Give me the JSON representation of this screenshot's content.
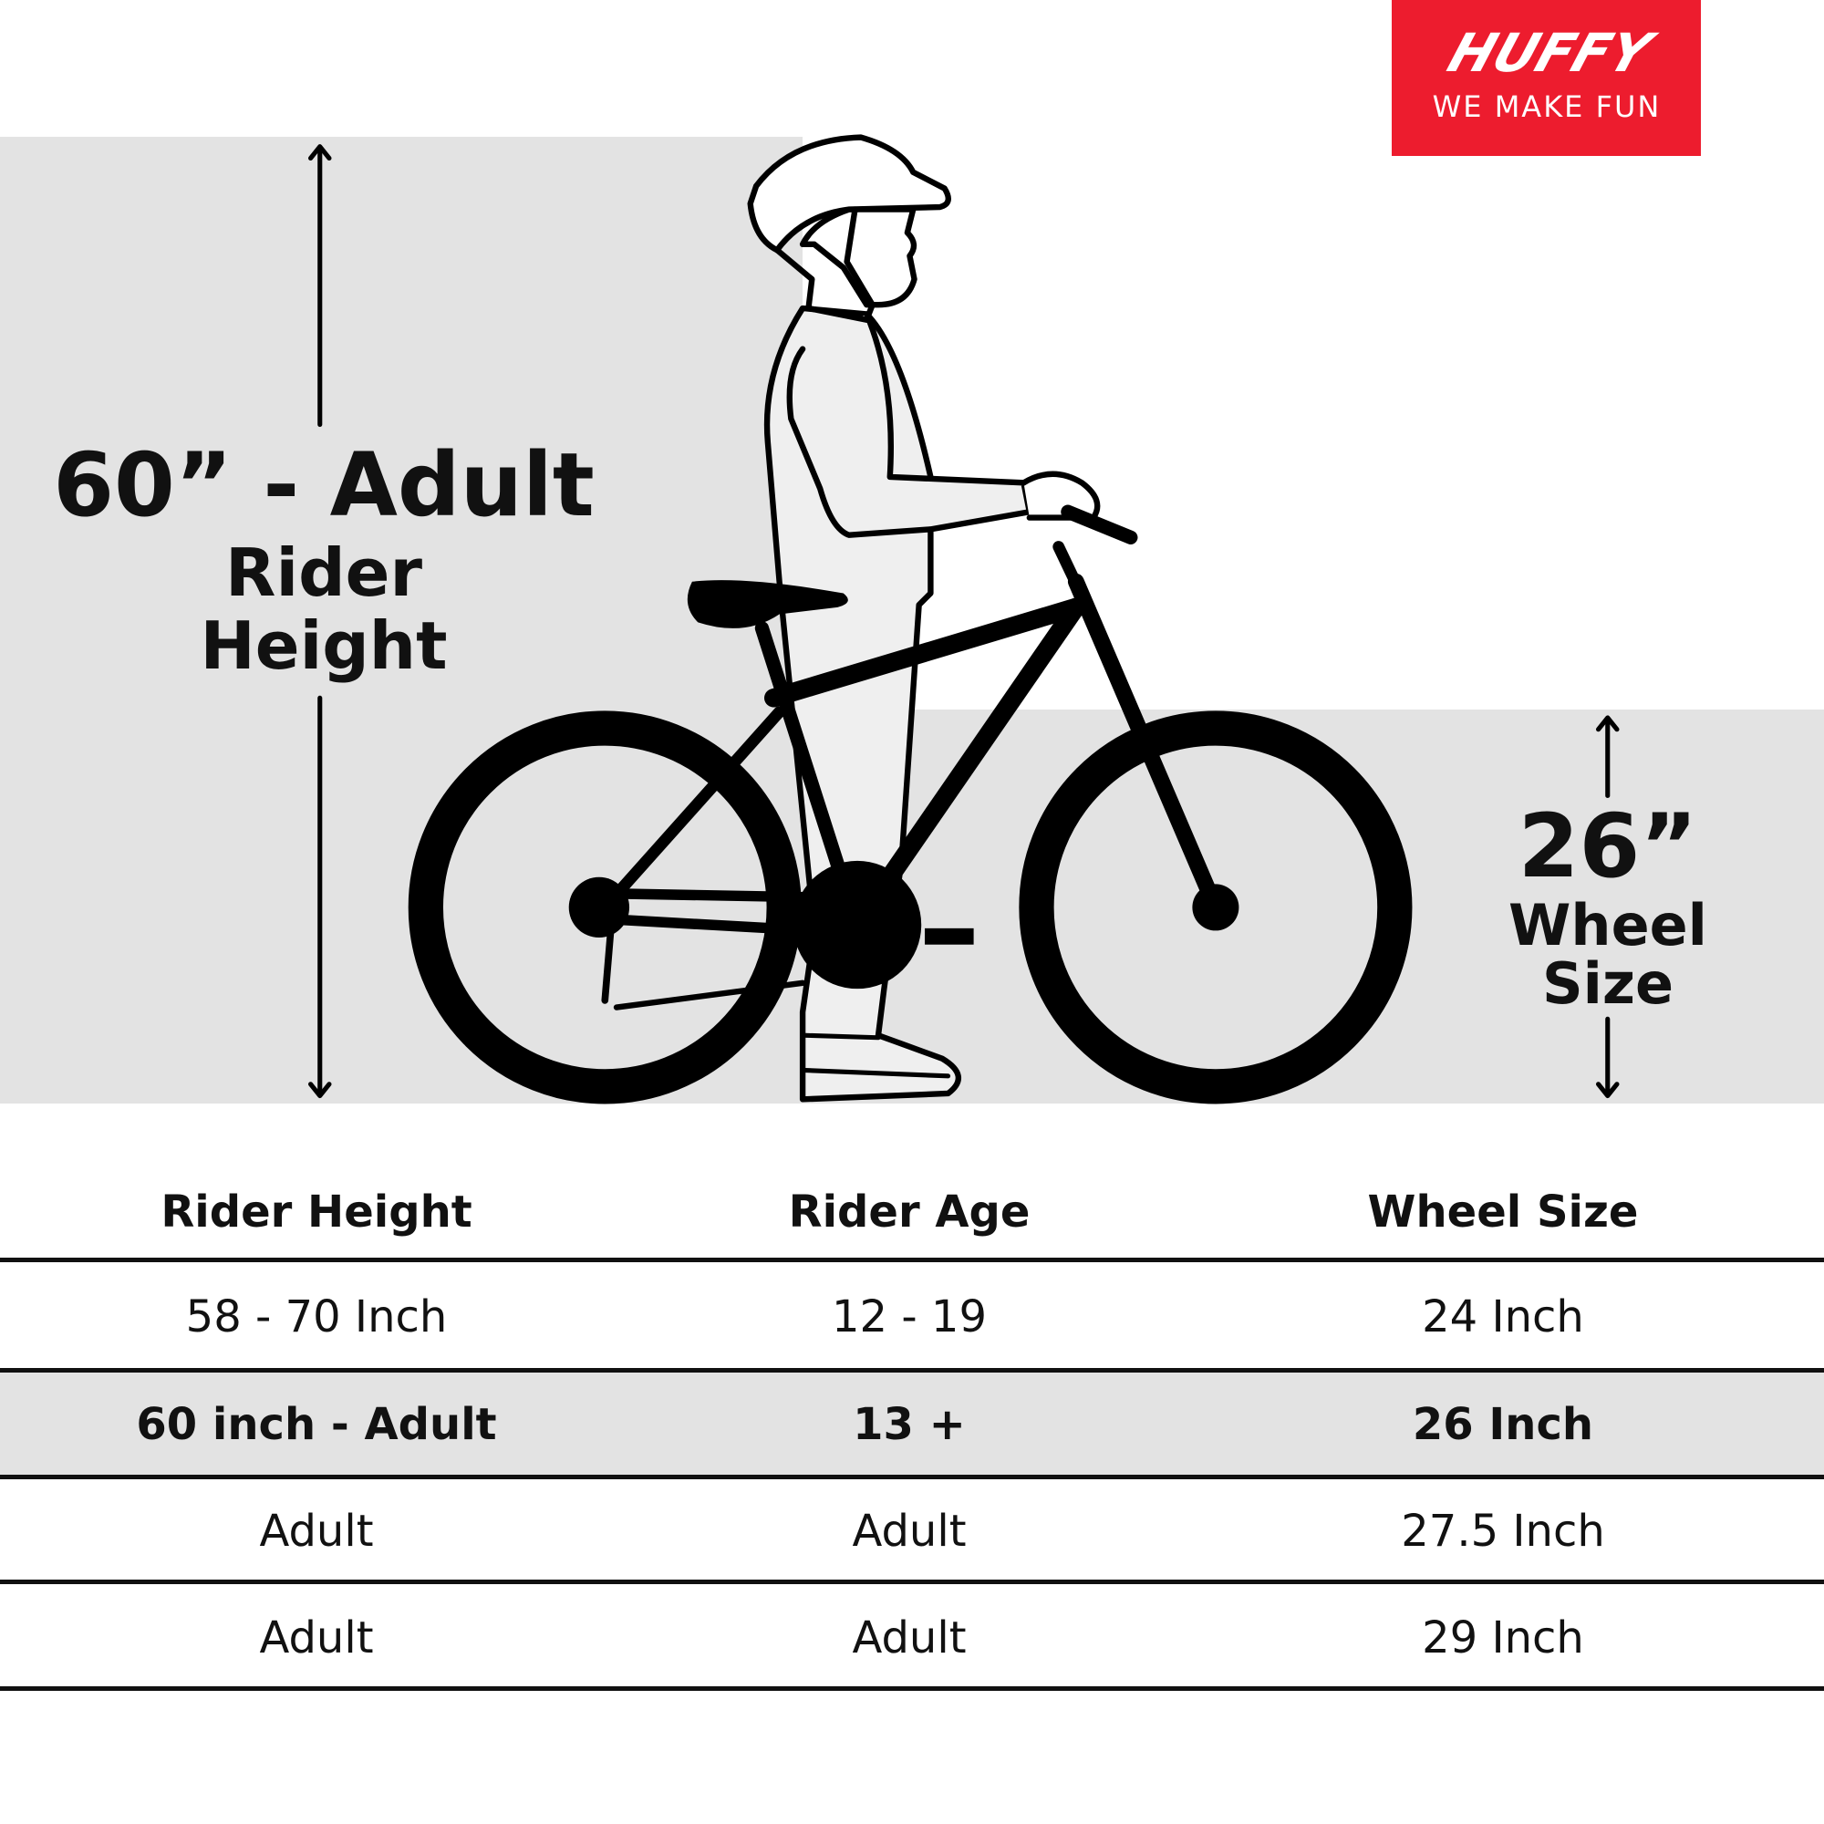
{
  "brand": {
    "name": "HUFFY",
    "tagline": "WE MAKE FUN",
    "color": "#ed1c2e"
  },
  "rider_label": {
    "height": "60” - Adult",
    "line1": "Rider",
    "line2": "Height"
  },
  "wheel_label": {
    "size": "26”",
    "line1": "Wheel",
    "line2": "Size"
  },
  "table": {
    "headers": [
      "Rider Height",
      "Rider Age",
      "Wheel Size"
    ],
    "rows": [
      [
        "58 - 70 Inch",
        "12 - 19",
        "24 Inch"
      ],
      [
        "60 inch - Adult",
        "13 +",
        "26 Inch"
      ],
      [
        "Adult",
        "Adult",
        "27.5 Inch"
      ],
      [
        "Adult",
        "Adult",
        "29 Inch"
      ]
    ],
    "highlighted_row": 1
  },
  "colors": {
    "band": "#e3e3e3",
    "ink": "#111111"
  }
}
